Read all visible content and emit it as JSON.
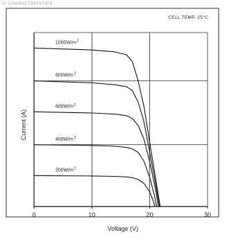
{
  "header_text": "IV CHARACTERISTICS",
  "chart_data": {
    "type": "line",
    "title": "",
    "annotation": "CELL TEMP. 25°C",
    "xlabel": "Voltage (V)",
    "ylabel": "Current (A)",
    "xlim": [
      0,
      30
    ],
    "x_ticks": [
      "0",
      "10",
      "20",
      "30"
    ],
    "grid": true,
    "series": [
      {
        "name": "1000W/m",
        "exp": "2",
        "points": [
          [
            0,
            8.2
          ],
          [
            5,
            8.15
          ],
          [
            10,
            8.1
          ],
          [
            14,
            8.0
          ],
          [
            16,
            7.85
          ],
          [
            17,
            7.5
          ],
          [
            18,
            6.5
          ],
          [
            19,
            5.2
          ],
          [
            20,
            3.3
          ],
          [
            21,
            1.5
          ],
          [
            21.8,
            0
          ]
        ]
      },
      {
        "name": "800W/m",
        "exp": "2",
        "points": [
          [
            0,
            6.5
          ],
          [
            5,
            6.45
          ],
          [
            10,
            6.4
          ],
          [
            14,
            6.3
          ],
          [
            16,
            6.2
          ],
          [
            17,
            6.0
          ],
          [
            18,
            5.4
          ],
          [
            19,
            4.4
          ],
          [
            20,
            2.8
          ],
          [
            21,
            1.2
          ],
          [
            21.7,
            0
          ]
        ]
      },
      {
        "name": "600W/m",
        "exp": "2",
        "points": [
          [
            0,
            4.9
          ],
          [
            5,
            4.87
          ],
          [
            10,
            4.84
          ],
          [
            14,
            4.78
          ],
          [
            16,
            4.7
          ],
          [
            17,
            4.55
          ],
          [
            18,
            4.2
          ],
          [
            19,
            3.5
          ],
          [
            20,
            2.3
          ],
          [
            21,
            0.9
          ],
          [
            21.5,
            0
          ]
        ]
      },
      {
        "name": "400W/m",
        "exp": "2",
        "points": [
          [
            0,
            3.2
          ],
          [
            5,
            3.18
          ],
          [
            10,
            3.16
          ],
          [
            14,
            3.12
          ],
          [
            16,
            3.06
          ],
          [
            17,
            2.98
          ],
          [
            18,
            2.8
          ],
          [
            19,
            2.35
          ],
          [
            20,
            1.5
          ],
          [
            20.8,
            0.6
          ],
          [
            21.2,
            0
          ]
        ]
      },
      {
        "name": "200W/m",
        "exp": "2",
        "points": [
          [
            0,
            1.6
          ],
          [
            5,
            1.59
          ],
          [
            10,
            1.58
          ],
          [
            14,
            1.56
          ],
          [
            16,
            1.53
          ],
          [
            17,
            1.49
          ],
          [
            18,
            1.4
          ],
          [
            19,
            1.2
          ],
          [
            20,
            0.75
          ],
          [
            20.6,
            0.3
          ],
          [
            20.9,
            0
          ]
        ]
      }
    ]
  }
}
